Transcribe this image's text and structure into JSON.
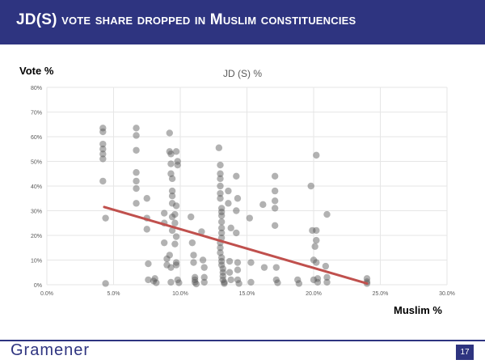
{
  "slide": {
    "title": "JD(S) vote share dropped in Muslim constituencies",
    "y_axis_caption": "Vote %",
    "x_axis_caption": "Muslim %",
    "brand": "Gramener",
    "page_number": "17"
  },
  "colors": {
    "header": "#2e3480",
    "points": "#555555",
    "trendline": "#c0504d",
    "grid": "#e6e6e6"
  },
  "chart_data": {
    "type": "scatter",
    "title": "JD (S) %",
    "xlabel": "Muslim %",
    "ylabel": "Vote %",
    "xlim": [
      0,
      30
    ],
    "ylim": [
      0,
      80
    ],
    "x_ticks": [
      0,
      5,
      10,
      15,
      20,
      25,
      30
    ],
    "y_ticks": [
      0,
      10,
      20,
      30,
      40,
      50,
      60,
      70,
      80
    ],
    "x_tick_labels": [
      "0.0%",
      "5.0%",
      "10.0%",
      "15.0%",
      "20.0%",
      "25.0%",
      "30.0%"
    ],
    "y_tick_labels": [
      "0%",
      "10%",
      "20%",
      "30%",
      "40%",
      "50%",
      "60%",
      "70%",
      "80%"
    ],
    "grid": true,
    "trendline": {
      "x": [
        4.3,
        24.0
      ],
      "y": [
        31.5,
        0.5
      ]
    },
    "points": [
      [
        4.2,
        63.5
      ],
      [
        4.2,
        62
      ],
      [
        4.2,
        57
      ],
      [
        4.2,
        55
      ],
      [
        4.2,
        53
      ],
      [
        4.2,
        51
      ],
      [
        4.2,
        42
      ],
      [
        4.4,
        27
      ],
      [
        4.4,
        0.5
      ],
      [
        6.7,
        63.5
      ],
      [
        6.7,
        60.5
      ],
      [
        6.7,
        54.5
      ],
      [
        6.7,
        45.5
      ],
      [
        6.7,
        42
      ],
      [
        6.7,
        39
      ],
      [
        6.7,
        33
      ],
      [
        7.5,
        35
      ],
      [
        7.5,
        27
      ],
      [
        7.5,
        22.5
      ],
      [
        7.6,
        8.5
      ],
      [
        7.6,
        2
      ],
      [
        8,
        1.5
      ],
      [
        8.1,
        2.5
      ],
      [
        8.2,
        0.8
      ],
      [
        8.8,
        29
      ],
      [
        8.8,
        25
      ],
      [
        8.8,
        17
      ],
      [
        9.0,
        10.5
      ],
      [
        9.0,
        8
      ],
      [
        9.2,
        61.5
      ],
      [
        9.2,
        54
      ],
      [
        9.3,
        53
      ],
      [
        9.3,
        49
      ],
      [
        9.3,
        45
      ],
      [
        9.4,
        43
      ],
      [
        9.4,
        38
      ],
      [
        9.4,
        36
      ],
      [
        9.4,
        33
      ],
      [
        9.4,
        27.5
      ],
      [
        9.4,
        22
      ],
      [
        9.2,
        12
      ],
      [
        9.3,
        7
      ],
      [
        9.3,
        1
      ],
      [
        9.7,
        54
      ],
      [
        9.8,
        50
      ],
      [
        9.8,
        48.5
      ],
      [
        9.7,
        32
      ],
      [
        9.6,
        28.5
      ],
      [
        9.6,
        25
      ],
      [
        9.7,
        19.5
      ],
      [
        9.6,
        16.5
      ],
      [
        9.7,
        9
      ],
      [
        9.7,
        8
      ],
      [
        9.8,
        2
      ],
      [
        9.9,
        0.8
      ],
      [
        10.8,
        27.5
      ],
      [
        10.9,
        17
      ],
      [
        11.0,
        12
      ],
      [
        11.0,
        9
      ],
      [
        11.1,
        3
      ],
      [
        11.1,
        2
      ],
      [
        11.1,
        1
      ],
      [
        11.2,
        0.3
      ],
      [
        11.6,
        21.5
      ],
      [
        11.7,
        10
      ],
      [
        11.8,
        7
      ],
      [
        11.8,
        3
      ],
      [
        11.8,
        1
      ],
      [
        12.9,
        55.5
      ],
      [
        13.0,
        48.5
      ],
      [
        13.0,
        45
      ],
      [
        13.0,
        43
      ],
      [
        13.0,
        40
      ],
      [
        13.0,
        37
      ],
      [
        13.0,
        35
      ],
      [
        13.1,
        31
      ],
      [
        13.1,
        29.5
      ],
      [
        13.1,
        28
      ],
      [
        13.1,
        25.5
      ],
      [
        13.1,
        23
      ],
      [
        13.1,
        21
      ],
      [
        13.1,
        19
      ],
      [
        13.0,
        17
      ],
      [
        13.0,
        15
      ],
      [
        13.0,
        13
      ],
      [
        13.1,
        11
      ],
      [
        13.1,
        9.5
      ],
      [
        13.1,
        8
      ],
      [
        13.2,
        6.5
      ],
      [
        13.2,
        5
      ],
      [
        13.2,
        3.5
      ],
      [
        13.2,
        2
      ],
      [
        13.3,
        1
      ],
      [
        13.3,
        0.5
      ],
      [
        13.6,
        38
      ],
      [
        13.6,
        33
      ],
      [
        13.8,
        23
      ],
      [
        13.7,
        9.5
      ],
      [
        13.7,
        5
      ],
      [
        13.8,
        2
      ],
      [
        14.2,
        44
      ],
      [
        14.3,
        35
      ],
      [
        14.2,
        30
      ],
      [
        14.2,
        21
      ],
      [
        14.3,
        9
      ],
      [
        14.3,
        6
      ],
      [
        14.3,
        2
      ],
      [
        14.4,
        0.5
      ],
      [
        15.2,
        27
      ],
      [
        15.3,
        9
      ],
      [
        15.3,
        1
      ],
      [
        16.2,
        32.5
      ],
      [
        16.3,
        7
      ],
      [
        17.1,
        44
      ],
      [
        17.1,
        38
      ],
      [
        17.1,
        34
      ],
      [
        17.1,
        31
      ],
      [
        17.1,
        24
      ],
      [
        17.2,
        7
      ],
      [
        17.2,
        2
      ],
      [
        17.3,
        0.8
      ],
      [
        18.8,
        2
      ],
      [
        18.9,
        0.5
      ],
      [
        19.8,
        40
      ],
      [
        19.9,
        22
      ],
      [
        20.0,
        10
      ],
      [
        20.0,
        2
      ],
      [
        20.2,
        52.5
      ],
      [
        20.2,
        22
      ],
      [
        20.2,
        18
      ],
      [
        20.1,
        15.5
      ],
      [
        20.2,
        9
      ],
      [
        20.3,
        2.5
      ],
      [
        20.3,
        1
      ],
      [
        21.0,
        28.5
      ],
      [
        20.9,
        7.5
      ],
      [
        21.0,
        3
      ],
      [
        21.0,
        1
      ],
      [
        24.0,
        2.5
      ],
      [
        24.0,
        1.2
      ],
      [
        24.0,
        0.5
      ]
    ]
  }
}
